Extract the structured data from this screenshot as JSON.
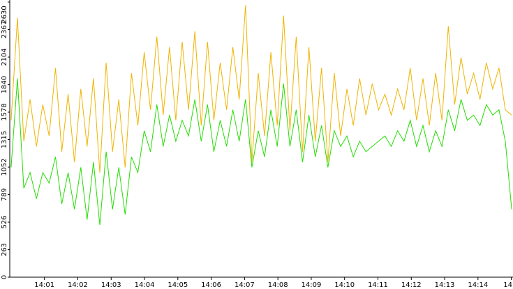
{
  "chart_data": {
    "type": "line",
    "x": [
      0,
      0.19,
      0.38,
      0.57,
      0.76,
      0.95,
      1.14,
      1.33,
      1.52,
      1.71,
      1.9,
      2.09,
      2.28,
      2.47,
      2.66,
      2.85,
      3.04,
      3.23,
      3.42,
      3.61,
      3.8,
      3.99,
      4.18,
      4.37,
      4.56,
      4.75,
      4.94,
      5.13,
      5.32,
      5.51,
      5.7,
      5.89,
      6.08,
      6.27,
      6.46,
      6.65,
      6.84,
      7.03,
      7.22,
      7.41,
      7.6,
      7.79,
      7.98,
      8.17,
      8.36,
      8.55,
      8.74,
      8.93,
      9.12,
      9.31,
      9.5,
      9.69,
      9.88,
      10.07,
      10.26,
      10.45,
      10.64,
      10.83,
      11.02,
      11.21,
      11.4,
      11.59,
      11.78,
      11.97,
      12.16,
      12.35,
      12.54,
      12.73,
      12.92,
      13.11,
      13.3,
      13.49,
      13.68,
      13.87,
      14.06,
      14.25,
      14.44,
      14.63,
      14.82,
      15.01
    ],
    "series": [
      {
        "color": "#f0b400",
        "values": [
          1500,
          2480,
          1300,
          1700,
          1250,
          1650,
          1350,
          2000,
          1200,
          1750,
          1100,
          1800,
          1250,
          1900,
          1000,
          2050,
          1200,
          1700,
          1050,
          1950,
          1450,
          2150,
          1600,
          2300,
          1550,
          2200,
          1500,
          2250,
          1600,
          2350,
          1450,
          2250,
          1500,
          2050,
          1600,
          2200,
          1700,
          2600,
          1100,
          1950,
          1350,
          2150,
          1450,
          2500,
          1400,
          2300,
          1200,
          2200,
          1300,
          2000,
          1100,
          1950,
          1350,
          1800,
          1450,
          1900,
          1550,
          1850,
          1600,
          1750,
          1550,
          1800,
          1600,
          2000,
          1500,
          1900,
          1450,
          1950,
          1500,
          2400,
          1650,
          2100,
          1750,
          1950,
          1700,
          2050,
          1800,
          2000,
          1600,
          1550
        ]
      },
      {
        "color": "#22dd00",
        "values": [
          1050,
          1900,
          850,
          1000,
          750,
          1000,
          900,
          1150,
          700,
          1000,
          650,
          1050,
          550,
          1100,
          500,
          1200,
          650,
          1050,
          600,
          1150,
          1000,
          1400,
          1200,
          1650,
          1250,
          1550,
          1300,
          1500,
          1350,
          1700,
          1300,
          1650,
          1200,
          1500,
          1250,
          1600,
          1300,
          1700,
          1050,
          1400,
          1150,
          1600,
          1250,
          1850,
          1250,
          1600,
          1100,
          1550,
          1150,
          1450,
          1050,
          1400,
          1250,
          1350,
          1150,
          1300,
          1200,
          1250,
          1300,
          1350,
          1250,
          1400,
          1300,
          1500,
          1250,
          1450,
          1200,
          1400,
          1250,
          1600,
          1400,
          1700,
          1500,
          1550,
          1450,
          1650,
          1550,
          1600,
          1300,
          650
        ]
      }
    ],
    "xlim": [
      -0.04,
      15.05
    ],
    "xticks": [
      {
        "value": 1,
        "label": "14:01"
      },
      {
        "value": 2,
        "label": "14:02"
      },
      {
        "value": 3,
        "label": "14:03"
      },
      {
        "value": 4,
        "label": "14:04"
      },
      {
        "value": 5,
        "label": "14:05"
      },
      {
        "value": 6,
        "label": "14:06"
      },
      {
        "value": 7,
        "label": "14:07"
      },
      {
        "value": 8,
        "label": "14:08"
      },
      {
        "value": 9,
        "label": "14:09"
      },
      {
        "value": 10,
        "label": "14:10"
      },
      {
        "value": 11,
        "label": "14:11"
      },
      {
        "value": 12,
        "label": "14:12"
      },
      {
        "value": 13,
        "label": "14:13"
      },
      {
        "value": 14,
        "label": "14:14"
      },
      {
        "value": 15,
        "label": "14"
      }
    ],
    "ylim": [
      0,
      2630
    ],
    "yticks": [
      0,
      263,
      526,
      789,
      1052,
      1315,
      1578,
      1840,
      2104,
      2367,
      2630
    ]
  }
}
